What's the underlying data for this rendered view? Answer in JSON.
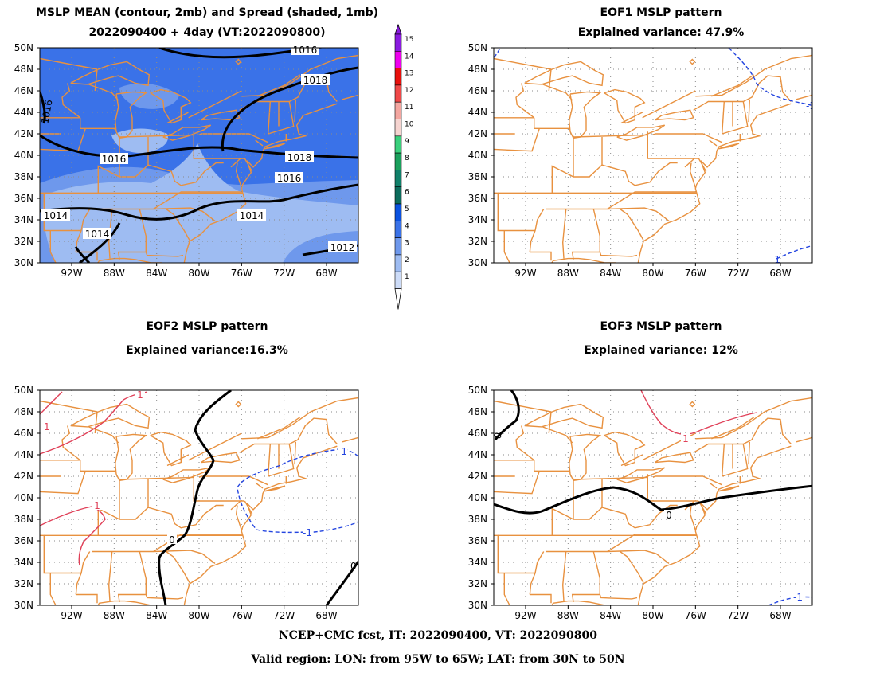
{
  "panels": {
    "mean": {
      "title1": "MSLP MEAN (contour, 2mb) and Spread (shaded, 1mb)",
      "title2": "2022090400 + 4day (VT:2022090800)"
    },
    "eof1": {
      "title1": "EOF1 MSLP pattern",
      "title2": "Explained variance: 47.9%"
    },
    "eof2": {
      "title1": "EOF2 MSLP pattern",
      "title2": "Explained variance:16.3%"
    },
    "eof3": {
      "title1": "EOF3 MSLP pattern",
      "title2": "Explained variance: 12%"
    }
  },
  "axes": {
    "lat_labels": [
      "50N",
      "48N",
      "46N",
      "44N",
      "42N",
      "40N",
      "38N",
      "36N",
      "34N",
      "32N",
      "30N"
    ],
    "lon_labels": [
      "92W",
      "88W",
      "84W",
      "80W",
      "76W",
      "72W",
      "68W"
    ]
  },
  "colorbar": {
    "labels": [
      "15",
      "14",
      "13",
      "12",
      "11",
      "10",
      "9",
      "8",
      "7",
      "6",
      "5",
      "4",
      "3",
      "2",
      "1"
    ],
    "colors": {
      "15": "#8a1be0",
      "14": "#ee00ee",
      "13": "#e8100c",
      "12": "#f04848",
      "11": "#f4a6a0",
      "10": "#f6d4d0",
      "9": "#3ad07c",
      "8": "#1aa05c",
      "7": "#10806a",
      "6": "#0c6c5c",
      "5": "#0a52e0",
      "4": "#3a72e8",
      "3": "#6e98ec",
      "2": "#9ebcf2",
      "1": "#cddcf8"
    }
  },
  "contour_labels": {
    "mean": [
      "1016",
      "1018",
      "1016",
      "1018",
      "1016",
      "1014",
      "1014",
      "1014",
      "1012",
      "1016"
    ],
    "eof1": [
      "-1",
      "-1"
    ],
    "eof2": [
      "1",
      "1",
      "1",
      "0",
      "-1",
      "-1",
      "0"
    ],
    "eof3": [
      "0",
      "1",
      "0",
      "-1"
    ]
  },
  "colors": {
    "map_lines": "#e8913f",
    "shade_light": "#9ebcf2",
    "shade_mid": "#6e98ec",
    "shade_dark": "#3a72e8",
    "negative_contour": "#2445e0",
    "positive_contour": "#e04058",
    "zero_contour": "#000000"
  },
  "footer": {
    "line1": "NCEP+CMC fcst, IT: 2022090400, VT: 2022090800",
    "line2": "Valid region: LON: from 95W to 65W; LAT: from 30N to 50N"
  }
}
